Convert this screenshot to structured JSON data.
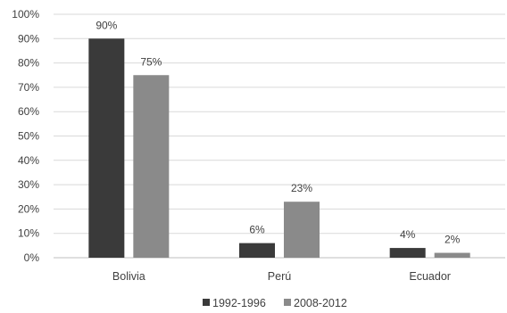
{
  "chart_data": {
    "type": "bar",
    "categories": [
      "Bolivia",
      "Perú",
      "Ecuador"
    ],
    "series": [
      {
        "name": "1992-1996",
        "values": [
          90,
          6,
          4
        ],
        "labels": [
          "90%",
          "6%",
          "4%"
        ],
        "color": "#3a3a3a"
      },
      {
        "name": "2008-2012",
        "values": [
          75,
          23,
          2
        ],
        "labels": [
          "75%",
          "23%",
          "2%"
        ],
        "color": "#8a8a8a"
      }
    ],
    "y_ticks": [
      "0%",
      "10%",
      "20%",
      "30%",
      "40%",
      "50%",
      "60%",
      "70%",
      "80%",
      "90%",
      "100%"
    ],
    "ylim": [
      0,
      100
    ],
    "title": "",
    "xlabel": "",
    "ylabel": "",
    "grid": true,
    "legend_position": "bottom"
  }
}
